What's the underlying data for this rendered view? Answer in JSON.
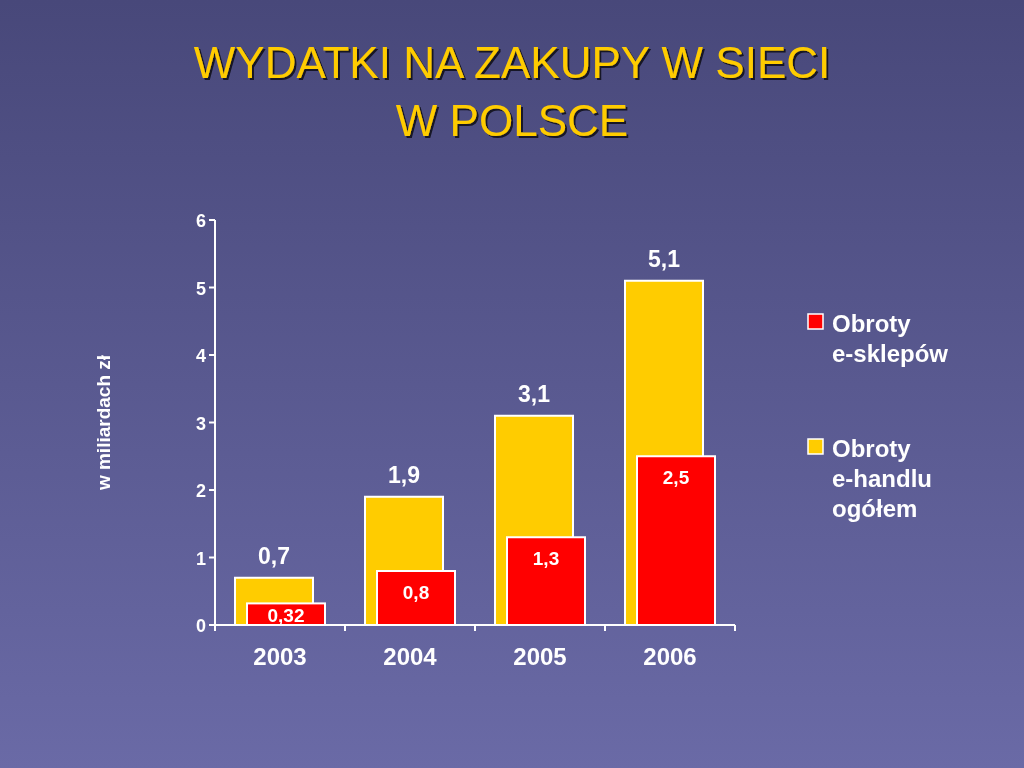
{
  "chart_data": {
    "type": "bar",
    "title": "WYDATKI NA ZAKUPY W SIECI W POLSCE",
    "ylabel": "w miliardach zł",
    "categories": [
      "2003",
      "2004",
      "2005",
      "2006"
    ],
    "series": [
      {
        "name": "Obroty e-sklepów",
        "color": "#ff0000",
        "values": [
          0.32,
          0.8,
          1.3,
          2.5
        ],
        "value_labels": [
          "0,32",
          "0,8",
          "1,3",
          "2,5"
        ]
      },
      {
        "name": "Obroty e-handlu ogółem",
        "color": "#ffcc00",
        "values": [
          0.7,
          1.9,
          3.1,
          5.1
        ],
        "value_labels": [
          "0,7",
          "1,9",
          "3,1",
          "5,1"
        ]
      }
    ],
    "ylim": [
      0,
      6
    ],
    "yticks": [
      0,
      1,
      2,
      3,
      4,
      5,
      6
    ],
    "legend": "right"
  }
}
